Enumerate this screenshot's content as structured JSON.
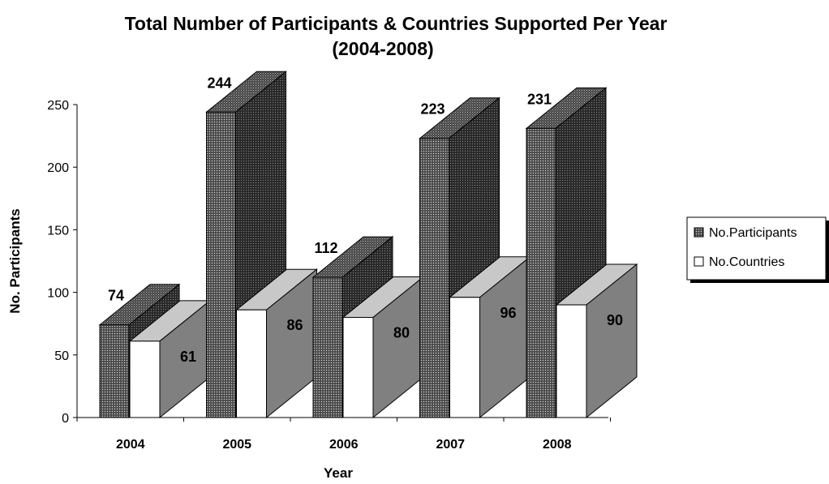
{
  "chart_data": {
    "type": "bar",
    "title_line1": "Total Number of Participants & Countries Supported Per Year",
    "title_line2": "(2004-2008)",
    "xlabel": "Year",
    "ylabel": "No. Participants",
    "categories": [
      "2004",
      "2005",
      "2006",
      "2007",
      "2008"
    ],
    "series": [
      {
        "name": "No.Participants",
        "values": [
          74,
          244,
          112,
          223,
          231
        ],
        "pattern": "dotted-dark",
        "color": "#3a3a3a"
      },
      {
        "name": "No.Countries",
        "values": [
          61,
          86,
          80,
          96,
          90
        ],
        "color": "#ffffff"
      }
    ],
    "ylim": [
      0,
      250
    ],
    "yticks": [
      "0",
      "50",
      "100",
      "150",
      "200",
      "250"
    ],
    "grid": false,
    "legend_position": "right",
    "three_d": true
  }
}
